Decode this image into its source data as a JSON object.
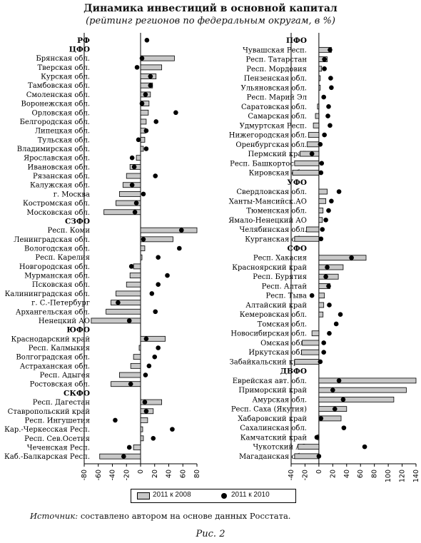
{
  "title": "Динамика инвестиций в основной капитал",
  "subtitle": "(рейтинг регионов по федеральным округам, в %)",
  "legend": {
    "bars": "2011 к 2008",
    "dots": "2011 к 2010"
  },
  "source": {
    "label": "Источник:",
    "text": " составлено автором на основе данных Росстата."
  },
  "figure_caption": "Рис. 2",
  "chart_data": [
    {
      "type": "bar",
      "xlim": [
        -80,
        80
      ],
      "xticks": [
        -80,
        -60,
        -40,
        -20,
        0,
        20,
        40,
        60,
        80
      ],
      "series": [
        {
          "name": "2011 к 2008",
          "kind": "bar",
          "color": "#c8c8c8"
        },
        {
          "name": "2011 к 2010",
          "kind": "dot",
          "color": "#000000"
        }
      ],
      "rows": [
        {
          "label": "РФ",
          "header": true,
          "bar": null,
          "dot": 9
        },
        {
          "label": "ЦФО",
          "header": true,
          "bar": null,
          "dot": null
        },
        {
          "label": "Брянская обл.",
          "bar": 48,
          "dot": 2
        },
        {
          "label": "Тверская обл.",
          "bar": 30,
          "dot": -5
        },
        {
          "label": "Курская обл.",
          "bar": 22,
          "dot": 14
        },
        {
          "label": "Тамбовская обл.",
          "bar": 17,
          "dot": 14
        },
        {
          "label": "Смоленская обл.",
          "bar": 14,
          "dot": 7
        },
        {
          "label": "Воронежская обл.",
          "bar": 12,
          "dot": 2
        },
        {
          "label": "Орловская обл.",
          "bar": 11,
          "dot": 50
        },
        {
          "label": "Белгородская обл.",
          "bar": 8,
          "dot": 22
        },
        {
          "label": "Липецкая обл.",
          "bar": 7,
          "dot": 8
        },
        {
          "label": "Тульская обл.",
          "bar": 6,
          "dot": -3
        },
        {
          "label": "Владимирская обл.",
          "bar": 4,
          "dot": 8
        },
        {
          "label": "Ярославская обл.",
          "bar": -6,
          "dot": -12
        },
        {
          "label": "Ивановская обл.",
          "bar": -15,
          "dot": -9
        },
        {
          "label": "Рязанская обл.",
          "bar": -20,
          "dot": 21
        },
        {
          "label": "Калужская обл.",
          "bar": -25,
          "dot": -12
        },
        {
          "label": "г. Москва",
          "bar": -30,
          "dot": 4
        },
        {
          "label": "Костромская обл.",
          "bar": -35,
          "dot": -6
        },
        {
          "label": "Московская обл.",
          "bar": -52,
          "dot": -8
        },
        {
          "label": "СЗФО",
          "header": true,
          "bar": null,
          "dot": null
        },
        {
          "label": "Респ. Коми",
          "bar": 80,
          "dot": 58
        },
        {
          "label": "Ленинградская обл.",
          "bar": 46,
          "dot": 4
        },
        {
          "label": "Вологодская обл.",
          "bar": 6,
          "dot": 55
        },
        {
          "label": "Респ. Карелия",
          "bar": 2,
          "dot": 25
        },
        {
          "label": "Новгородская обл.",
          "bar": -10,
          "dot": -13
        },
        {
          "label": "Мурманская обл.",
          "bar": -15,
          "dot": 38
        },
        {
          "label": "Псковская обл.",
          "bar": -20,
          "dot": 25
        },
        {
          "label": "Калининградская обл.",
          "bar": -35,
          "dot": 16
        },
        {
          "label": "г. С.-Петербург",
          "bar": -42,
          "dot": -32
        },
        {
          "label": "Архангельская обл.",
          "bar": -49,
          "dot": 21
        },
        {
          "label": "Ненецкий АО",
          "bar": -70,
          "dot": -16
        },
        {
          "label": "ЮФО",
          "header": true,
          "bar": null,
          "dot": null
        },
        {
          "label": "Краснодарский край",
          "bar": 35,
          "dot": 8
        },
        {
          "label": "Респ. Калмыкия",
          "bar": -2,
          "dot": 25
        },
        {
          "label": "Волгоградская обл.",
          "bar": -10,
          "dot": 20
        },
        {
          "label": "Астраханская обл.",
          "bar": -14,
          "dot": 12
        },
        {
          "label": "Респ. Адыгея",
          "bar": -30,
          "dot": 7
        },
        {
          "label": "Ростовская обл.",
          "bar": -42,
          "dot": -14
        },
        {
          "label": "СКФО",
          "header": true,
          "bar": null,
          "dot": null
        },
        {
          "label": "Респ. Дагестан",
          "bar": 30,
          "dot": 6
        },
        {
          "label": "Ставропольский край",
          "bar": 18,
          "dot": 8
        },
        {
          "label": "Респ. Ингушетия",
          "bar": 10,
          "dot": -36
        },
        {
          "label": "Кар.-Черкесская Респ.",
          "bar": 3,
          "dot": 45
        },
        {
          "label": "Респ. Сев.Осетия",
          "bar": 4,
          "dot": 18
        },
        {
          "label": "Чеченская Респ.",
          "bar": -10,
          "dot": -16
        },
        {
          "label": "Каб.-Балкарская Респ.",
          "bar": -58,
          "dot": -24
        }
      ]
    },
    {
      "type": "bar",
      "xlim": [
        -40,
        140
      ],
      "xticks": [
        -40,
        -20,
        0,
        20,
        40,
        60,
        80,
        100,
        120,
        140
      ],
      "series": [
        {
          "name": "2011 к 2008",
          "kind": "bar",
          "color": "#c8c8c8"
        },
        {
          "name": "2011 к 2010",
          "kind": "dot",
          "color": "#000000"
        }
      ],
      "rows": [
        {
          "label": "ПФО",
          "header": true,
          "bar": null,
          "dot": null
        },
        {
          "label": "Чувашская Респ.",
          "bar": 18,
          "dot": 16
        },
        {
          "label": "Респ. Татарстан",
          "bar": 12,
          "dot": 8
        },
        {
          "label": "Респ. Мордовия",
          "bar": 4,
          "dot": 8
        },
        {
          "label": "Пензенская обл.",
          "bar": 2,
          "dot": 17
        },
        {
          "label": "Ульяновская обл.",
          "bar": 2,
          "dot": 18
        },
        {
          "label": "Респ. Марий Эл",
          "bar": 0,
          "dot": 7
        },
        {
          "label": "Саратовская обл.",
          "bar": -2,
          "dot": 14
        },
        {
          "label": "Самарская обл.",
          "bar": -5,
          "dot": 13
        },
        {
          "label": "Удмуртская Респ.",
          "bar": -8,
          "dot": 16
        },
        {
          "label": "Нижегородская обл.",
          "bar": -15,
          "dot": 8
        },
        {
          "label": "Оренбургская обл.",
          "bar": -17,
          "dot": 2
        },
        {
          "label": "Пермский край",
          "bar": -27,
          "dot": -10
        },
        {
          "label": "Респ. Башкортостан",
          "bar": -35,
          "dot": 4
        },
        {
          "label": "Кировская обл.",
          "bar": -38,
          "dot": 3
        },
        {
          "label": "УФО",
          "header": true,
          "bar": null,
          "dot": null
        },
        {
          "label": "Свердловская обл.",
          "bar": 12,
          "dot": 29
        },
        {
          "label": "Ханты-Мансийск.АО",
          "bar": 10,
          "dot": 18
        },
        {
          "label": "Тюменская обл.",
          "bar": 6,
          "dot": 14
        },
        {
          "label": "Ямало-Ненецкий АО",
          "bar": 5,
          "dot": 10
        },
        {
          "label": "Челябинская обл.",
          "bar": -18,
          "dot": 5
        },
        {
          "label": "Курганская обл.",
          "bar": -35,
          "dot": 3
        },
        {
          "label": "СФО",
          "header": true,
          "bar": null,
          "dot": null
        },
        {
          "label": "Респ. Хакасия",
          "bar": 68,
          "dot": 47
        },
        {
          "label": "Красноярский край",
          "bar": 35,
          "dot": 12
        },
        {
          "label": "Респ. Бурятия",
          "bar": 28,
          "dot": 10
        },
        {
          "label": "Респ. Алтай",
          "bar": 16,
          "dot": 14
        },
        {
          "label": "Респ. Тыва",
          "bar": 8,
          "dot": -10
        },
        {
          "label": "Алтайский край",
          "bar": 7,
          "dot": 15
        },
        {
          "label": "Кемеровская обл.",
          "bar": 6,
          "dot": 31
        },
        {
          "label": "Томская обл.",
          "bar": 0,
          "dot": 25
        },
        {
          "label": "Новосибирская обл.",
          "bar": -10,
          "dot": 15
        },
        {
          "label": "Омская обл.",
          "bar": -24,
          "dot": 7
        },
        {
          "label": "Иркутская обл.",
          "bar": -25,
          "dot": 7
        },
        {
          "label": "Забайкальский край",
          "bar": -35,
          "dot": 2
        },
        {
          "label": "ДВФО",
          "header": true,
          "bar": null,
          "dot": null
        },
        {
          "label": "Еврейская авт. обл.",
          "bar": 140,
          "dot": 29
        },
        {
          "label": "Приморский край",
          "bar": 126,
          "dot": 20
        },
        {
          "label": "Амурская обл.",
          "bar": 108,
          "dot": 35
        },
        {
          "label": "Респ. Саха (Якутия)",
          "bar": 40,
          "dot": 23
        },
        {
          "label": "Хабаровский край",
          "bar": 32,
          "dot": 3
        },
        {
          "label": "Сахалинская обл.",
          "bar": 0,
          "dot": 36
        },
        {
          "label": "Камчатский край",
          "bar": -2,
          "dot": -3
        },
        {
          "label": "Чукотский АО",
          "bar": -30,
          "dot": 66
        },
        {
          "label": "Магаданская обл.",
          "bar": -35,
          "dot": 0
        }
      ]
    }
  ]
}
